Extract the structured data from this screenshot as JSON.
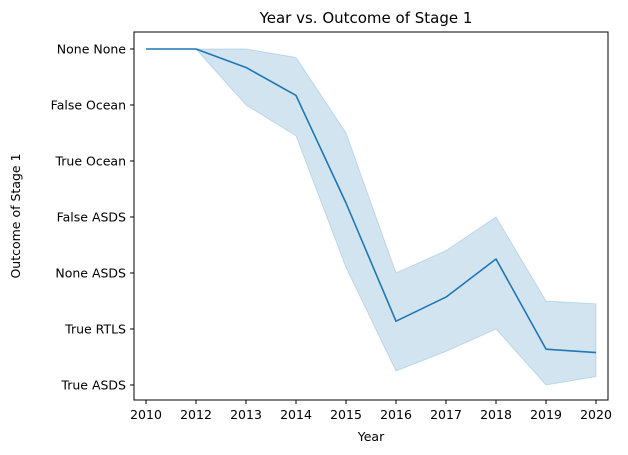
{
  "chart_data": {
    "type": "line",
    "title": "Year vs. Outcome of Stage 1",
    "xlabel": "Year",
    "ylabel": "Outcome of Stage 1",
    "x_categories": [
      "2010",
      "2012",
      "2013",
      "2014",
      "2015",
      "2016",
      "2017",
      "2018",
      "2019",
      "2020"
    ],
    "y_categories": [
      "None None",
      "False Ocean",
      "True Ocean",
      "False ASDS",
      "None ASDS",
      "True RTLS",
      "True ASDS"
    ],
    "y_order_note": "category index 0 at top",
    "series": [
      {
        "color": "#1f77b4",
        "mean": [
          0,
          0,
          0.33,
          0.83,
          2.75,
          4.86,
          4.43,
          3.75,
          5.36,
          5.42
        ],
        "ci_lower": [
          0,
          0,
          0,
          0.15,
          1.5,
          4.0,
          3.6,
          3.0,
          4.5,
          4.55
        ],
        "ci_upper": [
          0,
          0,
          1.0,
          1.55,
          3.9,
          5.75,
          5.4,
          5.0,
          6.0,
          5.85
        ]
      }
    ],
    "band_color": "#1f77b4",
    "grid": false,
    "legend": "none"
  }
}
